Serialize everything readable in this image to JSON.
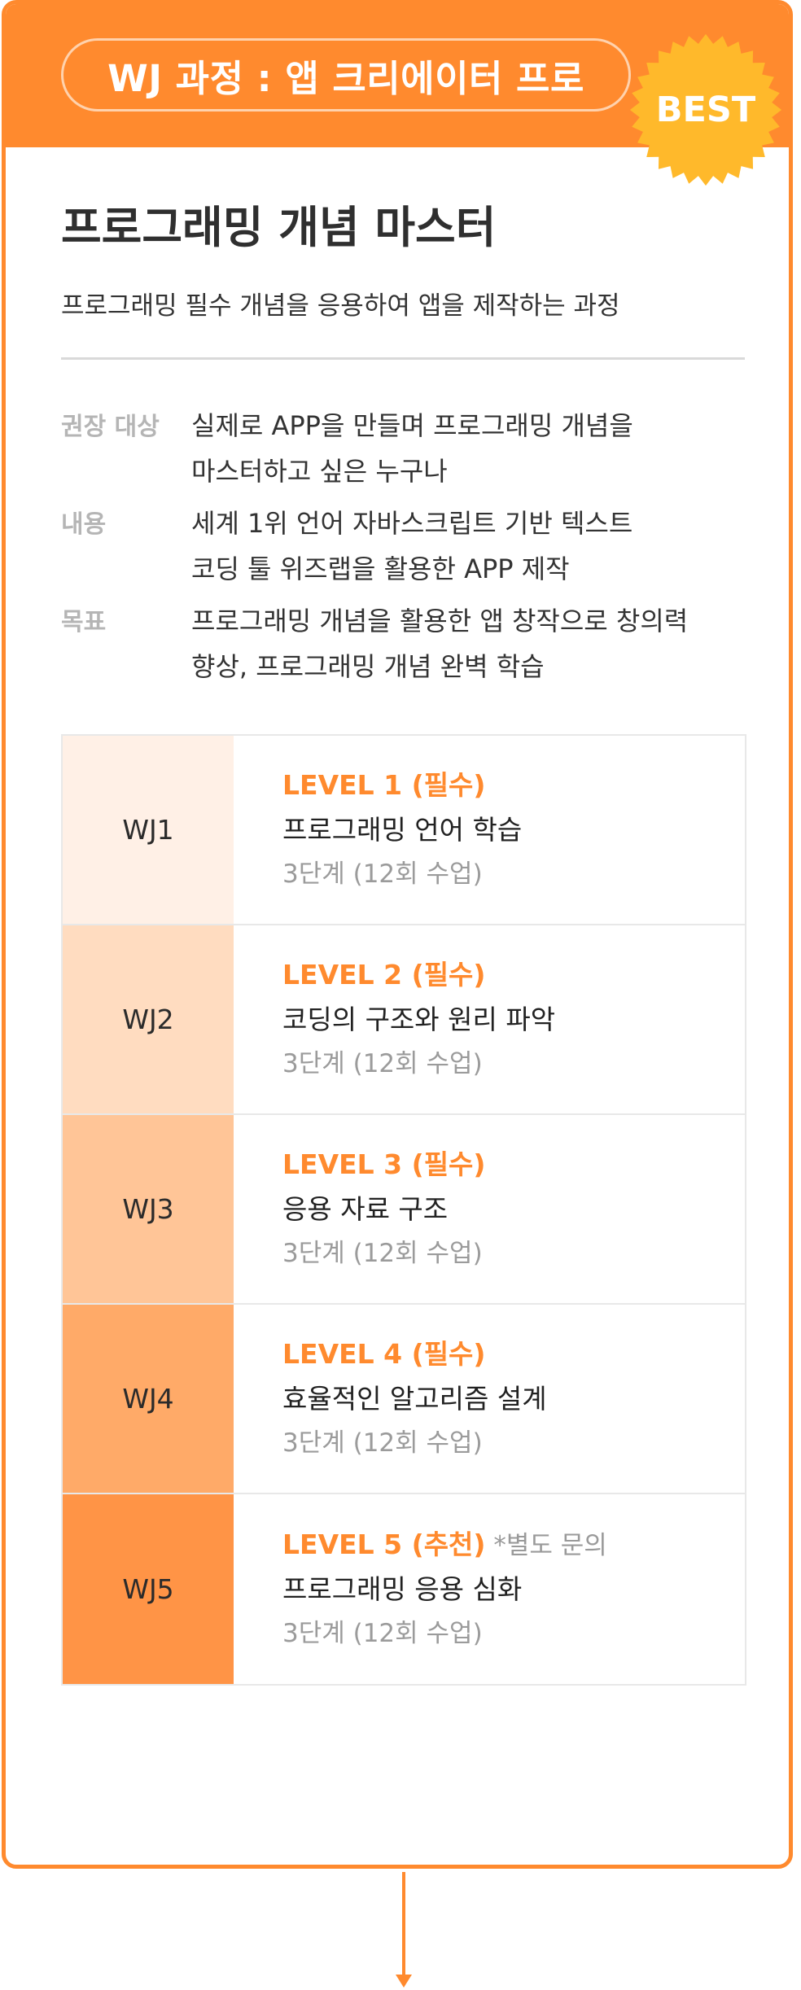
{
  "course": {
    "pill": "WJ 과정 : 앱 크리에이터 프로",
    "badge": "BEST",
    "title": "프로그래밍 개념 마스터",
    "subtitle": "프로그래밍 필수 개념을 응용하여 앱을 제작하는 과정"
  },
  "info": [
    {
      "label": "권장 대상",
      "lines": [
        "실제로 APP을 만들며 프로그래밍 개념을",
        "마스터하고 싶은 누구나"
      ]
    },
    {
      "label": "내용",
      "lines": [
        "세계 1위 언어 자바스크립트 기반 텍스트",
        "코딩 툴 위즈랩을 활용한 APP 제작"
      ]
    },
    {
      "label": "목표",
      "lines": [
        "프로그래밍 개념을 활용한 앱 창작으로 창의력",
        "향상, 프로그래밍 개념 완벽 학습"
      ]
    }
  ],
  "levels": [
    {
      "code": "WJ1",
      "level": "LEVEL 1 (필수)",
      "note": "",
      "name": "프로그래밍 언어 학습",
      "meta": "3단계 (12회 수업)",
      "color": "#fff0e6"
    },
    {
      "code": "WJ2",
      "level": "LEVEL 2 (필수)",
      "note": "",
      "name": "코딩의 구조와 원리 파악",
      "meta": "3단계 (12회 수업)",
      "color": "#ffdcc0"
    },
    {
      "code": "WJ3",
      "level": "LEVEL 3 (필수)",
      "note": "",
      "name": "응용 자료 구조",
      "meta": "3단계 (12회 수업)",
      "color": "#ffc597"
    },
    {
      "code": "WJ4",
      "level": "LEVEL 4  (필수)",
      "note": "",
      "name": "효율적인 알고리즘 설계",
      "meta": "3단계 (12회 수업)",
      "color": "#ffaa68"
    },
    {
      "code": "WJ5",
      "level": "LEVEL 5  (추천)",
      "note": " *별도 문의",
      "name": "프로그래밍 응용 심화",
      "meta": "3단계 (12회 수업)",
      "color": "#ff9446"
    }
  ],
  "colors": {
    "accent": "#ff8a2e",
    "badge": "#ffb92b"
  }
}
